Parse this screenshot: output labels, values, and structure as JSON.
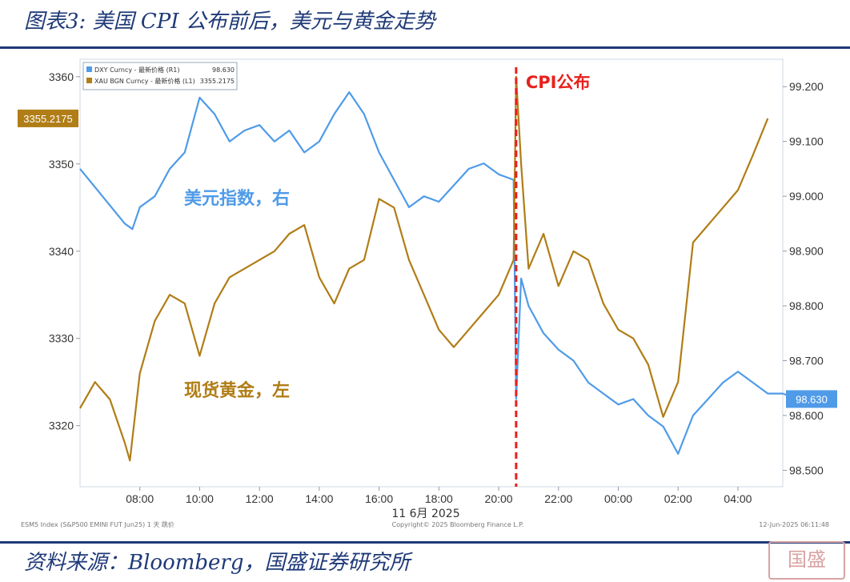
{
  "header": {
    "title": "图表3:  美国 CPI 公布前后，美元与黄金走势"
  },
  "footer": {
    "source": "资料来源：Bloomberg，国盛证券研究所",
    "seal_text": "国盛"
  },
  "chart_data": {
    "type": "line",
    "x_ticks": [
      "08:00",
      "10:00",
      "12:00",
      "14:00",
      "16:00",
      "18:00",
      "20:00",
      "22:00",
      "00:00",
      "02:00",
      "04:00"
    ],
    "x_date_label": "11 6月 2025",
    "y_left": {
      "ticks": [
        3320,
        3330,
        3340,
        3350,
        3360
      ],
      "range": [
        3313,
        3362
      ]
    },
    "y_right": {
      "ticks": [
        "98.500",
        "98.600",
        "98.700",
        "98.800",
        "98.900",
        "99.000",
        "99.100",
        "99.200"
      ],
      "range": [
        98.47,
        99.25
      ]
    },
    "legend": [
      {
        "label": "DXY Curncy - 最新价格 (R1)",
        "value": "98.630",
        "color": "#4f9be8"
      },
      {
        "label": "XAU BGN Curncy - 最新价格 (L1)",
        "value": "3355.2175",
        "color": "#b07d16"
      }
    ],
    "last_value_left": "3355.2175",
    "last_value_right": "98.630",
    "event_label": "CPI公布",
    "event_time": "20:35",
    "series": [
      {
        "name": "美元指数，右",
        "axis": "right",
        "color": "#4f9be8",
        "points": [
          [
            "06:00",
            99.05
          ],
          [
            "07:30",
            98.95
          ],
          [
            "07:45",
            98.94
          ],
          [
            "08:00",
            98.98
          ],
          [
            "08:30",
            99.0
          ],
          [
            "09:00",
            99.05
          ],
          [
            "09:30",
            99.08
          ],
          [
            "10:00",
            99.18
          ],
          [
            "10:30",
            99.15
          ],
          [
            "11:00",
            99.1
          ],
          [
            "11:30",
            99.12
          ],
          [
            "12:00",
            99.13
          ],
          [
            "12:30",
            99.1
          ],
          [
            "13:00",
            99.12
          ],
          [
            "13:30",
            99.08
          ],
          [
            "14:00",
            99.1
          ],
          [
            "14:30",
            99.15
          ],
          [
            "15:00",
            99.19
          ],
          [
            "15:30",
            99.15
          ],
          [
            "16:00",
            99.08
          ],
          [
            "16:30",
            99.03
          ],
          [
            "17:00",
            98.98
          ],
          [
            "17:30",
            99.0
          ],
          [
            "18:00",
            98.99
          ],
          [
            "18:30",
            99.02
          ],
          [
            "19:00",
            99.05
          ],
          [
            "19:30",
            99.06
          ],
          [
            "20:00",
            99.04
          ],
          [
            "20:30",
            99.03
          ],
          [
            "20:35",
            98.63
          ],
          [
            "20:45",
            98.85
          ],
          [
            "21:00",
            98.8
          ],
          [
            "21:30",
            98.75
          ],
          [
            "22:00",
            98.72
          ],
          [
            "22:30",
            98.7
          ],
          [
            "23:00",
            98.66
          ],
          [
            "23:30",
            98.64
          ],
          [
            "00:00",
            98.62
          ],
          [
            "00:30",
            98.63
          ],
          [
            "01:00",
            98.6
          ],
          [
            "01:30",
            98.58
          ],
          [
            "02:00",
            98.53
          ],
          [
            "02:30",
            98.6
          ],
          [
            "03:00",
            98.63
          ],
          [
            "03:30",
            98.66
          ],
          [
            "04:00",
            98.68
          ],
          [
            "04:30",
            98.66
          ],
          [
            "05:00",
            98.64
          ],
          [
            "05:30",
            98.64
          ],
          [
            "06:00+",
            98.63
          ]
        ]
      },
      {
        "name": "现货黄金，左",
        "axis": "left",
        "color": "#b07d16",
        "points": [
          [
            "06:00",
            3322
          ],
          [
            "06:30",
            3325
          ],
          [
            "07:00",
            3323
          ],
          [
            "07:30",
            3318
          ],
          [
            "07:40",
            3316
          ],
          [
            "08:00",
            3326
          ],
          [
            "08:30",
            3332
          ],
          [
            "09:00",
            3335
          ],
          [
            "09:30",
            3334
          ],
          [
            "10:00",
            3328
          ],
          [
            "10:30",
            3334
          ],
          [
            "11:00",
            3337
          ],
          [
            "11:30",
            3338
          ],
          [
            "12:00",
            3339
          ],
          [
            "12:30",
            3340
          ],
          [
            "13:00",
            3342
          ],
          [
            "13:30",
            3343
          ],
          [
            "14:00",
            3337
          ],
          [
            "14:30",
            3334
          ],
          [
            "15:00",
            3338
          ],
          [
            "15:30",
            3339
          ],
          [
            "16:00",
            3346
          ],
          [
            "16:30",
            3345
          ],
          [
            "17:00",
            3339
          ],
          [
            "17:30",
            3335
          ],
          [
            "18:00",
            3331
          ],
          [
            "18:30",
            3329
          ],
          [
            "19:00",
            3331
          ],
          [
            "19:30",
            3333
          ],
          [
            "20:00",
            3335
          ],
          [
            "20:30",
            3339
          ],
          [
            "20:35",
            3360
          ],
          [
            "20:45",
            3350
          ],
          [
            "21:00",
            3338
          ],
          [
            "21:30",
            3342
          ],
          [
            "22:00",
            3336
          ],
          [
            "22:30",
            3340
          ],
          [
            "23:00",
            3339
          ],
          [
            "23:30",
            3334
          ],
          [
            "00:00",
            3331
          ],
          [
            "00:30",
            3330
          ],
          [
            "01:00",
            3327
          ],
          [
            "01:30",
            3321
          ],
          [
            "02:00",
            3325
          ],
          [
            "02:30",
            3341
          ],
          [
            "03:00",
            3343
          ],
          [
            "03:30",
            3345
          ],
          [
            "04:00",
            3347
          ],
          [
            "04:30",
            3351
          ],
          [
            "05:00",
            3355.2175
          ]
        ]
      }
    ],
    "footer_left": "ESM5 Index (S&P500 EMINI FUT Jun25) 1 天 跳价",
    "footer_center": "Copyright© 2025 Bloomberg Finance L.P.",
    "footer_right": "12-Jun-2025 06:11:48"
  }
}
